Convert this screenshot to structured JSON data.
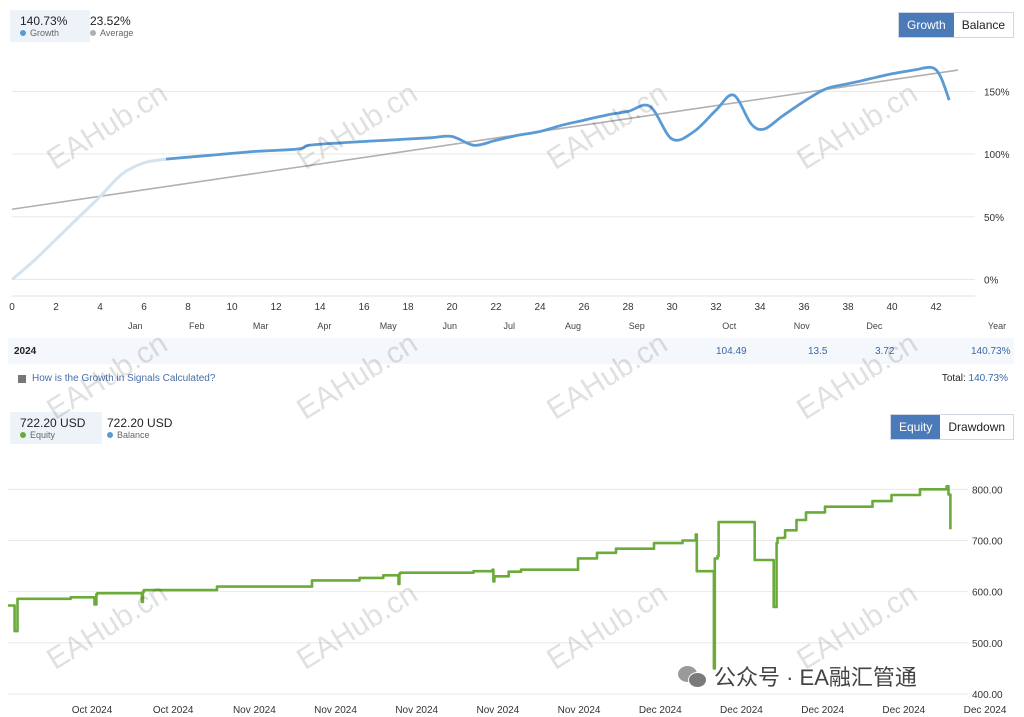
{
  "growth_panel": {
    "stat_main_value": "140.73%",
    "stat_main_label": "Growth",
    "stat_avg_value": "23.52%",
    "stat_avg_label": "Average",
    "toggle_active": "Growth",
    "toggle_inactive": "Balance",
    "growth_color": "#5b9bd5",
    "average_color": "#b0b0b0"
  },
  "year_row": {
    "year": "2024",
    "sep": "104.49",
    "nov": "13.5",
    "dec": "3.72",
    "year_total": "140.73%"
  },
  "help_text": "How is the Growth in Signals Calculated?",
  "total_label": "Total:",
  "total_value": "140.73%",
  "equity_panel": {
    "stat_main_value": "722.20 USD",
    "stat_main_label": "Equity",
    "stat_bal_value": "722.20 USD",
    "stat_bal_label": "Balance",
    "toggle_active": "Equity",
    "toggle_inactive": "Drawdown",
    "equity_color": "#6aab3a"
  },
  "footer": {
    "text": "公众号 · EA融汇管通"
  },
  "chart_data": [
    {
      "type": "line",
      "title": "",
      "x_ticks": [
        0,
        2,
        4,
        6,
        8,
        10,
        12,
        14,
        16,
        18,
        20,
        22,
        24,
        26,
        28,
        30,
        32,
        34,
        36,
        38,
        40,
        42
      ],
      "month_labels": [
        "Jan",
        "Feb",
        "Mar",
        "Apr",
        "May",
        "Jun",
        "Jul",
        "Aug",
        "Sep",
        "Oct",
        "Nov",
        "Dec"
      ],
      "month_positions": [
        5.6,
        8.4,
        11.3,
        14.2,
        17.1,
        19.9,
        22.6,
        25.5,
        28.4,
        32.6,
        35.9,
        39.2
      ],
      "x_axis_end_label": "Year",
      "y_ticks": [
        "0%",
        "50%",
        "100%",
        "150%"
      ],
      "y_values": [
        0,
        50,
        100,
        150
      ],
      "xlim": [
        0,
        43
      ],
      "ylim": [
        -10,
        175
      ],
      "series": [
        {
          "name": "Growth",
          "pre_signal_x": [
            0,
            1,
            2,
            3,
            4,
            5,
            6,
            7
          ],
          "pre_signal_y": [
            0,
            15,
            32,
            49,
            66,
            84,
            93,
            96
          ],
          "x": [
            7,
            9,
            11,
            13,
            13.5,
            15,
            17,
            19,
            20,
            21,
            22,
            23,
            24,
            25,
            26,
            27,
            28,
            29,
            30,
            31,
            32,
            32.8,
            33.6,
            34.2,
            35,
            36,
            37,
            38,
            39,
            40,
            41,
            41.8,
            42.2,
            42.6
          ],
          "y": [
            96,
            99,
            102,
            104,
            107,
            109,
            111,
            113,
            114,
            107,
            111,
            115,
            118,
            123,
            127,
            131,
            134,
            138,
            112,
            118,
            135,
            147,
            124,
            120,
            130,
            142,
            152,
            156,
            160,
            164,
            167,
            169,
            162,
            143
          ]
        },
        {
          "name": "Average",
          "x": [
            0,
            43
          ],
          "y": [
            56,
            167
          ]
        }
      ]
    },
    {
      "type": "line",
      "title": "",
      "x_tick_labels": [
        "Oct 2024",
        "Oct 2024",
        "Nov 2024",
        "Nov 2024",
        "Nov 2024",
        "Nov 2024",
        "Nov 2024",
        "Dec 2024",
        "Dec 2024",
        "Dec 2024",
        "Dec 2024",
        "Dec 2024"
      ],
      "y_ticks": [
        "400.00",
        "500.00",
        "600.00",
        "700.00",
        "800.00"
      ],
      "y_values": [
        400,
        500,
        600,
        700,
        800
      ],
      "xlim": [
        0,
        100
      ],
      "ylim": [
        400,
        830
      ],
      "series": [
        {
          "name": "Equity",
          "x": [
            0,
            0.6,
            0.7,
            1.0,
            1.1,
            6.5,
            6.6,
            9.0,
            9.1,
            9.3,
            9.4,
            14.0,
            14.1,
            14.2,
            14.3,
            22.0,
            32.0,
            37.0,
            39.5,
            41.0,
            41.1,
            41.2,
            41.3,
            49.0,
            51.0,
            51.1,
            51.2,
            52.6,
            52.7,
            54.0,
            58.0,
            60.0,
            62.0,
            64.0,
            68.0,
            71.0,
            72.4,
            72.5,
            74.2,
            74.3,
            74.4,
            74.7,
            74.8,
            78.5,
            78.6,
            80.5,
            80.6,
            80.9,
            81.0,
            81.7,
            81.8,
            83.0,
            84.0,
            86.0,
            91.0,
            93.0,
            96.0,
            98.8,
            99.0,
            99.2
          ],
          "y": [
            573,
            573,
            523,
            586,
            586,
            586,
            589,
            589,
            575,
            595,
            597,
            597,
            580,
            600,
            603,
            610,
            622,
            627,
            632,
            632,
            615,
            635,
            637,
            640,
            643,
            620,
            630,
            630,
            639,
            643,
            643,
            665,
            676,
            684,
            695,
            700,
            712,
            640,
            640,
            450,
            665,
            670,
            736,
            736,
            662,
            662,
            570,
            695,
            705,
            706,
            720,
            740,
            755,
            766,
            777,
            789,
            800,
            806,
            790,
            722
          ]
        }
      ]
    }
  ]
}
